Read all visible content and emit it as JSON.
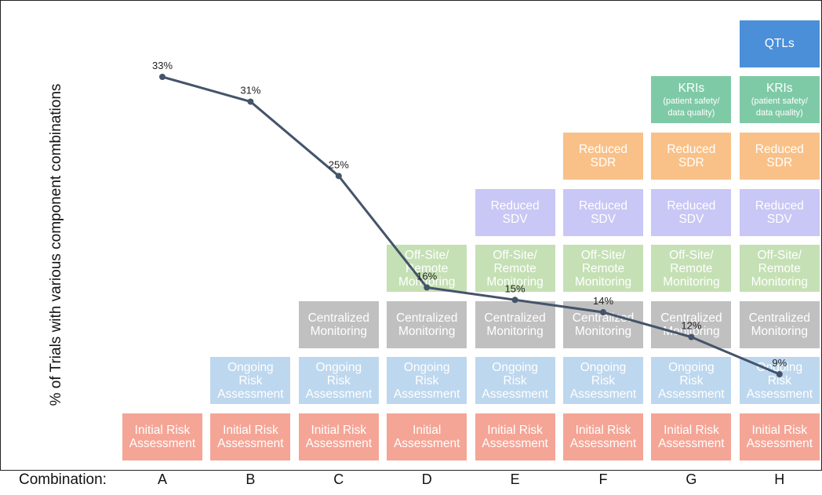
{
  "chart_data": {
    "type": "line",
    "ylabel": "% of Trials with various component combinations",
    "x_axis_title": "Combination:",
    "categories": [
      "A",
      "B",
      "C",
      "D",
      "E",
      "F",
      "G",
      "H"
    ],
    "values": [
      33,
      31,
      25,
      16,
      15,
      14,
      12,
      9
    ],
    "value_labels": [
      "33%",
      "31%",
      "25%",
      "16%",
      "15%",
      "14%",
      "12%",
      "9%"
    ],
    "ylim": [
      0,
      40
    ],
    "line_color": "#44546a",
    "component_colors": {
      "initial": "#f4a596",
      "ongoing": "#bdd7ee",
      "central": "#c0c0c0",
      "offsite": "#c5e0b4",
      "sdv": "#c9c7f5",
      "sdr": "#f9c188",
      "kri": "#7fcaa6",
      "qtl": "#4a8fd8"
    },
    "stacks": [
      [
        {
          "kind": "initial",
          "text": [
            "Initial Risk",
            "Assessment"
          ]
        }
      ],
      [
        {
          "kind": "initial",
          "text": [
            "Initial Risk",
            "Assessment"
          ]
        },
        {
          "kind": "ongoing",
          "text": [
            "Ongoing",
            "Risk",
            "Assessment"
          ]
        }
      ],
      [
        {
          "kind": "initial",
          "text": [
            "Initial Risk",
            "Assessment"
          ]
        },
        {
          "kind": "ongoing",
          "text": [
            "Ongoing",
            "Risk",
            "Assessment"
          ]
        },
        {
          "kind": "central",
          "text": [
            "Centralized",
            "Monitoring"
          ]
        }
      ],
      [
        {
          "kind": "initial",
          "text": [
            "Initial",
            "Assessment"
          ]
        },
        {
          "kind": "ongoing",
          "text": [
            "Ongoing",
            "Risk",
            "Assessment"
          ]
        },
        {
          "kind": "central",
          "text": [
            "Centralized",
            "Monitoring"
          ]
        },
        {
          "kind": "offsite",
          "text": [
            "Off-Site/",
            "Remote",
            "Monitoring"
          ]
        }
      ],
      [
        {
          "kind": "initial",
          "text": [
            "Initial Risk",
            "Assessment"
          ]
        },
        {
          "kind": "ongoing",
          "text": [
            "Ongoing",
            "Risk",
            "Assessment"
          ]
        },
        {
          "kind": "central",
          "text": [
            "Centralized",
            "Monitoring"
          ]
        },
        {
          "kind": "offsite",
          "text": [
            "Off-Site/",
            "Remote",
            "Monitoring"
          ]
        },
        {
          "kind": "sdv",
          "text": [
            "Reduced",
            "SDV"
          ]
        }
      ],
      [
        {
          "kind": "initial",
          "text": [
            "Initial Risk",
            "Assessment"
          ]
        },
        {
          "kind": "ongoing",
          "text": [
            "Ongoing",
            "Risk",
            "Assessment"
          ]
        },
        {
          "kind": "central",
          "text": [
            "Centralized",
            "Monitoring"
          ]
        },
        {
          "kind": "offsite",
          "text": [
            "Off-Site/",
            "Remote",
            "Monitoring"
          ]
        },
        {
          "kind": "sdv",
          "text": [
            "Reduced",
            "SDV"
          ]
        },
        {
          "kind": "sdr",
          "text": [
            "Reduced",
            "SDR"
          ]
        }
      ],
      [
        {
          "kind": "initial",
          "text": [
            "Initial Risk",
            "Assessment"
          ]
        },
        {
          "kind": "ongoing",
          "text": [
            "Ongoing",
            "Risk",
            "Assessment"
          ]
        },
        {
          "kind": "central",
          "text": [
            "Centralized",
            "Monitoring"
          ]
        },
        {
          "kind": "offsite",
          "text": [
            "Off-Site/",
            "Remote",
            "Monitoring"
          ]
        },
        {
          "kind": "sdv",
          "text": [
            "Reduced",
            "SDV"
          ]
        },
        {
          "kind": "sdr",
          "text": [
            "Reduced",
            "SDR"
          ]
        },
        {
          "kind": "kri",
          "text": [
            "KRIs"
          ],
          "sub": [
            "(patient safety/",
            "data quality)"
          ]
        }
      ],
      [
        {
          "kind": "initial",
          "text": [
            "Initial Risk",
            "Assessment"
          ]
        },
        {
          "kind": "ongoing",
          "text": [
            "Ongoing",
            "Risk",
            "Assessment"
          ]
        },
        {
          "kind": "central",
          "text": [
            "Centralized",
            "Monitoring"
          ]
        },
        {
          "kind": "offsite",
          "text": [
            "Off-Site/",
            "Remote",
            "Monitoring"
          ]
        },
        {
          "kind": "sdv",
          "text": [
            "Reduced",
            "SDV"
          ]
        },
        {
          "kind": "sdr",
          "text": [
            "Reduced",
            "SDR"
          ]
        },
        {
          "kind": "kri",
          "text": [
            "KRIs"
          ],
          "sub": [
            "(patient safety/",
            "data quality)"
          ]
        },
        {
          "kind": "qtl",
          "text": [
            "QTLs"
          ]
        }
      ]
    ]
  }
}
